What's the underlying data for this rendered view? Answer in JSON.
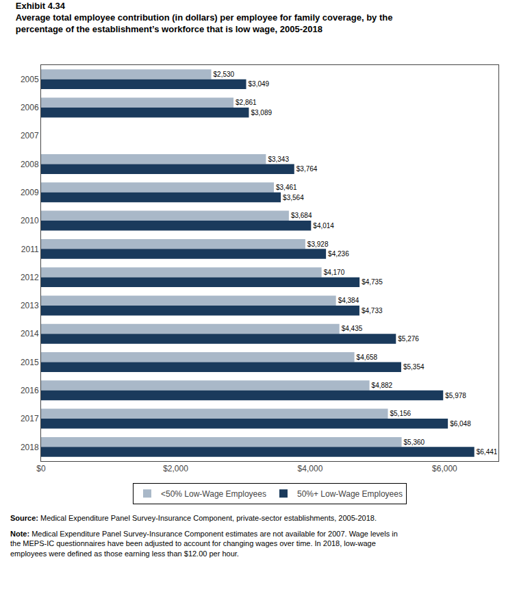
{
  "chart_data": {
    "type": "bar",
    "orientation": "horizontal",
    "title": "Exhibit 4.34",
    "subtitle": "Average total employee contribution (in dollars) per employee for family coverage, by the\npercentage of the establishment’s workforce that is low wage, 2005-2018",
    "categories": [
      "2005",
      "2006",
      "2007",
      "2008",
      "2009",
      "2010",
      "2011",
      "2012",
      "2013",
      "2014",
      "2015",
      "2016",
      "2017",
      "2018"
    ],
    "series": [
      {
        "name": "<50% Low-Wage Employees",
        "color": "#a9b8c8",
        "values": [
          2530,
          2861,
          null,
          3343,
          3461,
          3684,
          3928,
          4170,
          4384,
          4435,
          4658,
          4882,
          5156,
          5360
        ],
        "value_labels": [
          "$2,530",
          "$2,861",
          null,
          "$3,343",
          "$3,461",
          "$3,684",
          "$3,928",
          "$4,170",
          "$4,384",
          "$4,435",
          "$4,658",
          "$4,882",
          "$5,156",
          "$5,360"
        ]
      },
      {
        "name": "50%+ Low-Wage Employees",
        "color": "#1a3a5c",
        "values": [
          3049,
          3089,
          null,
          3764,
          3564,
          4014,
          4236,
          4735,
          4733,
          5276,
          5354,
          5978,
          6048,
          6441
        ],
        "value_labels": [
          "$3,049",
          "$3,089",
          null,
          "$3,764",
          "$3,564",
          "$4,014",
          "$4,236",
          "$4,735",
          "$4,733",
          "$5,276",
          "$5,354",
          "$5,978",
          "$6,048",
          "$6,441"
        ]
      }
    ],
    "xlim": [
      0,
      6800
    ],
    "xticks": [
      {
        "value": 0,
        "label": "$0"
      },
      {
        "value": 2000,
        "label": "$2,000"
      },
      {
        "value": 4000,
        "label": "$4,000"
      },
      {
        "value": 6000,
        "label": "$6,000"
      }
    ],
    "grid": false,
    "legend": "bottom",
    "data_labels": true,
    "annotations": [
      {
        "bold": "Source:",
        "text": " Medical Expenditure Panel Survey-Insurance Component, private-sector establishments, 2005-2018."
      },
      {
        "bold": "Note:",
        "text": " Medical Expenditure Panel Survey-Insurance Component estimates are not available for 2007. Wage levels in the MEPS-IC questionnaires have been adjusted to account for changing wages over time. In 2018, low-wage employees were defined as those earning less than $12.00 per hour."
      }
    ]
  }
}
